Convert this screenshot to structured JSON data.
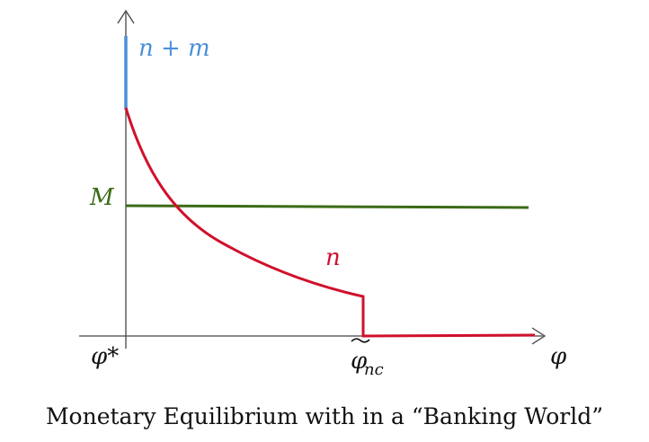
{
  "diagram": {
    "labels": {
      "upper_curve": "n + m",
      "money_level": "M",
      "lower_curve": "n",
      "x_origin": "φ*",
      "threshold": "φnc",
      "threshold_base": "φ",
      "threshold_sub": "nc",
      "x_axis": "φ"
    },
    "caption": "Monetary Equilibrium with in a “Banking World”",
    "colors": {
      "axis": "#444444",
      "n_plus_m": "#4a90d9",
      "money": "#3a6b16",
      "n": "#d0102c",
      "text": "#111111"
    }
  }
}
